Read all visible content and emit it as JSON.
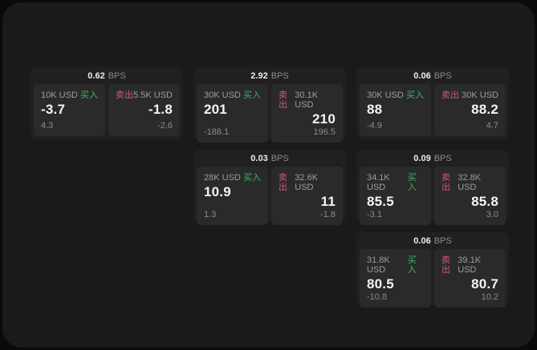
{
  "labels": {
    "bps_unit": "BPS",
    "buy": "买入",
    "sell": "卖出"
  },
  "colors": {
    "buy": "#3fb464",
    "sell": "#cc5b75",
    "window_bg": "#1a1a1a",
    "page_bg": "#0a0a0a",
    "card_bg": "#202021",
    "panel_bg": "#2a2a2b"
  },
  "cards": [
    {
      "bps": "0.62",
      "buy": {
        "amount": "10K USD",
        "value": "-3.7",
        "delta": "4.3"
      },
      "sell": {
        "amount": "5.5K USD",
        "value": "-1.8",
        "delta": "-2.6"
      }
    },
    {
      "bps": "2.92",
      "buy": {
        "amount": "30K USD",
        "value": "201",
        "delta": "-188.1"
      },
      "sell": {
        "amount": "30.1K USD",
        "value": "210",
        "delta": "196.5"
      }
    },
    {
      "bps": "0.06",
      "buy": {
        "amount": "30K USD",
        "value": "88",
        "delta": "-4.9"
      },
      "sell": {
        "amount": "30K USD",
        "value": "88.2",
        "delta": "4.7"
      }
    },
    {
      "bps": "0.03",
      "buy": {
        "amount": "28K USD",
        "value": "10.9",
        "delta": "1.3"
      },
      "sell": {
        "amount": "32.6K USD",
        "value": "11",
        "delta": "-1.8"
      }
    },
    {
      "bps": "0.09",
      "buy": {
        "amount": "34.1K USD",
        "value": "85.5",
        "delta": "-3.1"
      },
      "sell": {
        "amount": "32.8K USD",
        "value": "85.8",
        "delta": "3.0"
      }
    },
    {
      "bps": "0.06",
      "buy": {
        "amount": "31.8K USD",
        "value": "80.5",
        "delta": "-10.8"
      },
      "sell": {
        "amount": "39.1K USD",
        "value": "80.7",
        "delta": "10.2"
      }
    }
  ]
}
